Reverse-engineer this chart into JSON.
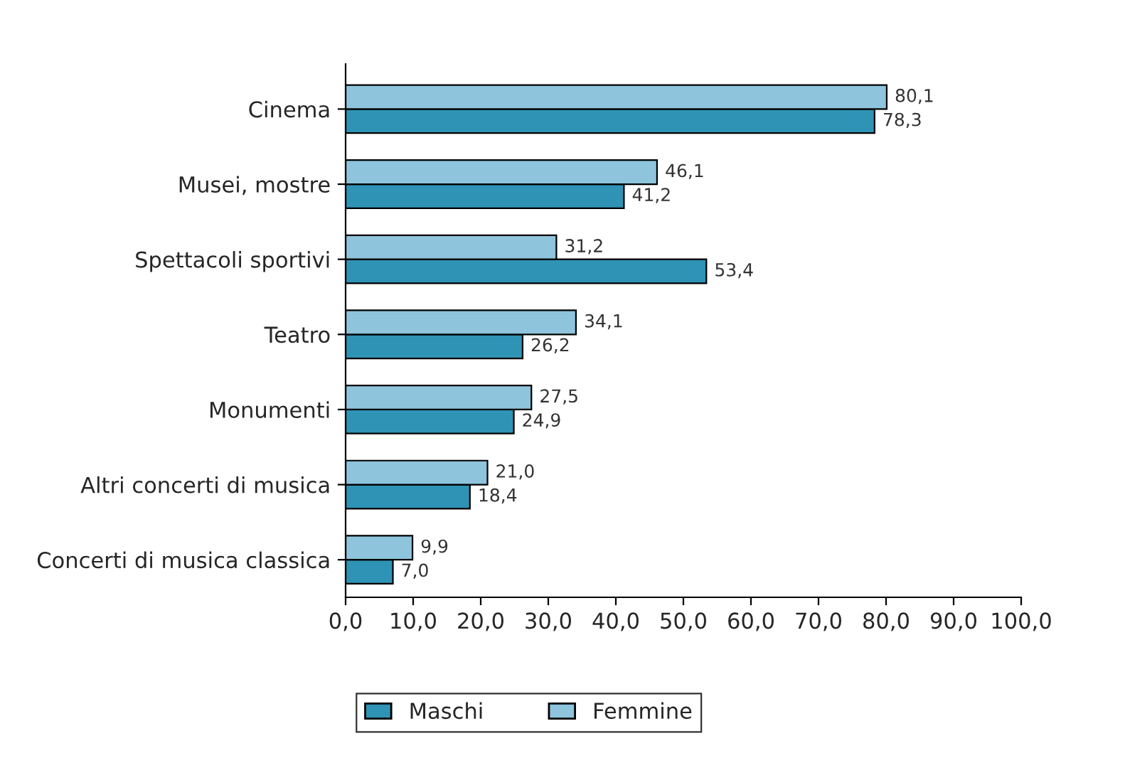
{
  "chart_data": {
    "type": "bar",
    "orientation": "horizontal",
    "categories": [
      "Cinema",
      "Musei, mostre",
      "Spettacoli sportivi",
      "Teatro",
      "Monumenti",
      "Altri concerti di musica",
      "Concerti di musica classica"
    ],
    "series": [
      {
        "name": "Maschi",
        "color": "#2f93b5",
        "values": [
          78.3,
          41.2,
          53.4,
          26.2,
          24.9,
          18.4,
          7.0
        ],
        "value_labels": [
          "78,3",
          "41,2",
          "53,4",
          "26,2",
          "24,9",
          "18,4",
          "7,0"
        ]
      },
      {
        "name": "Femmine",
        "color": "#8ec4dc",
        "values": [
          80.1,
          46.1,
          31.2,
          34.1,
          27.5,
          21.0,
          9.9
        ],
        "value_labels": [
          "80,1",
          "46,1",
          "31,2",
          "34,1",
          "27,5",
          "21,0",
          "9,9"
        ]
      }
    ],
    "xlim": [
      0,
      100
    ],
    "xticks": [
      {
        "value": 0,
        "label": "0,0"
      },
      {
        "value": 10,
        "label": "10,0"
      },
      {
        "value": 20,
        "label": "20,0"
      },
      {
        "value": 30,
        "label": "30,0"
      },
      {
        "value": 40,
        "label": "40,0"
      },
      {
        "value": 50,
        "label": "50,0"
      },
      {
        "value": 60,
        "label": "60,0"
      },
      {
        "value": 70,
        "label": "70,0"
      },
      {
        "value": 80,
        "label": "80,0"
      },
      {
        "value": 90,
        "label": "90,0"
      },
      {
        "value": 100,
        "label": "100,0"
      }
    ],
    "grid": false,
    "legend": "bottom"
  }
}
